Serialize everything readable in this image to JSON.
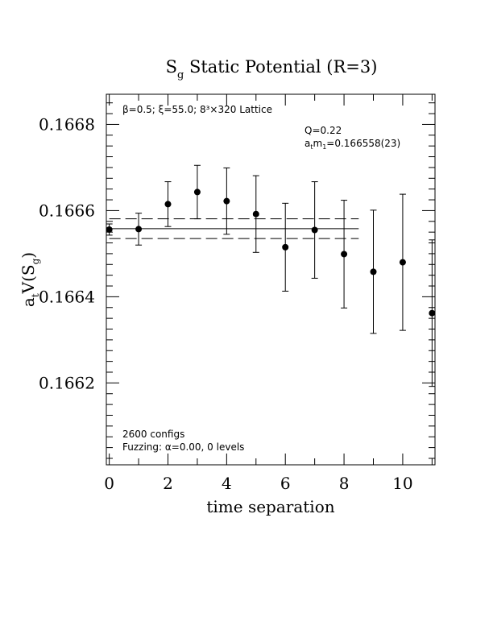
{
  "chart_data": {
    "type": "scatter",
    "title": {
      "main": "S",
      "sub": "g",
      "rest": " Static Potential (R=3)"
    },
    "xlabel": "time separation",
    "ylabel": {
      "prefix": "a",
      "prefix_sub": "t",
      "main": "V(S",
      "sub": "g",
      "close": ")"
    },
    "xlim": [
      -0.1,
      11.1
    ],
    "ylim": [
      0.16601,
      0.16687
    ],
    "x_ticks": [
      0,
      2,
      4,
      6,
      8,
      10
    ],
    "x_tick_labels": [
      "0",
      "2",
      "4",
      "6",
      "8",
      "10"
    ],
    "y_ticks": [
      0.1662,
      0.1664,
      0.1666,
      0.1668
    ],
    "y_tick_labels": [
      "0.1662",
      "0.1664",
      "0.1666",
      "0.1668"
    ],
    "series": [
      {
        "x": [
          0,
          1,
          2,
          3,
          4,
          5,
          6,
          7,
          8,
          9,
          10,
          11
        ],
        "y": [
          0.166556,
          0.166557,
          0.166615,
          0.166643,
          0.166622,
          0.166592,
          0.166515,
          0.166555,
          0.166499,
          0.166458,
          0.16648,
          0.166362
        ],
        "err": [
          1.3e-05,
          3.7e-05,
          5.2e-05,
          6.2e-05,
          7.7e-05,
          8.9e-05,
          0.000102,
          0.000112,
          0.000125,
          0.000143,
          0.000158,
          0.00017
        ]
      }
    ],
    "fit": {
      "x_range": [
        0,
        8.5
      ],
      "value": 0.166558,
      "error": 2.3e-05
    },
    "annotations": {
      "params": "β=0.5; ξ=55.0; 8³×320 Lattice",
      "q": "Q=0.22",
      "mass": {
        "prefix": "a",
        "prefix_sub": "t",
        "main": "m",
        "sub": "1",
        "rest": "=0.166558(23)"
      },
      "configs": "2600 configs",
      "fuzzing": "Fuzzing: α=0.00, 0 levels"
    }
  }
}
